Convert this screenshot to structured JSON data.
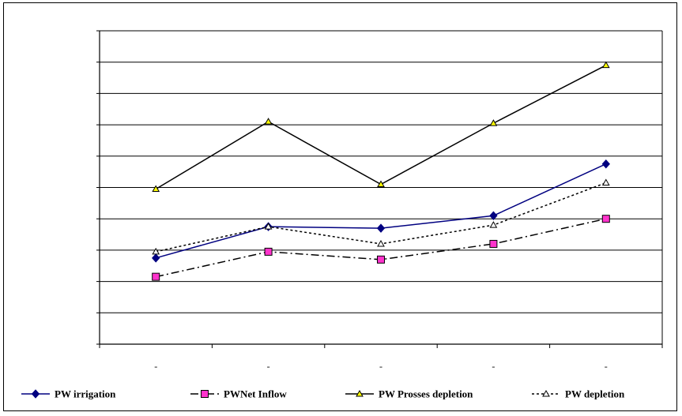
{
  "chart_data": {
    "type": "line",
    "categories": [
      "-",
      "-",
      "-",
      "-",
      "-"
    ],
    "ylim": [
      0,
      10
    ],
    "grid": true,
    "legend_placement": "bottom",
    "series": [
      {
        "name": "PW irrigation",
        "values": [
          2.75,
          3.75,
          3.7,
          4.1,
          5.75
        ],
        "color": "#000080",
        "line": "solid",
        "marker": "diamond",
        "marker_color": "#000080"
      },
      {
        "name": "PWNet Inflow",
        "values": [
          2.15,
          2.95,
          2.7,
          3.2,
          4.0
        ],
        "color": "#000000",
        "line": "dashdot",
        "marker": "square",
        "marker_color": "#ff33cc"
      },
      {
        "name": "PW Prosses depletion",
        "values": [
          4.95,
          7.1,
          5.1,
          7.05,
          8.9
        ],
        "color": "#000000",
        "line": "solid",
        "marker": "triangle",
        "marker_color": "#ffff00"
      },
      {
        "name": "PW depletion",
        "values": [
          2.95,
          3.75,
          3.2,
          3.8,
          5.15
        ],
        "color": "#000000",
        "line": "dotted",
        "marker": "triangle",
        "marker_color": "#ffffff"
      }
    ]
  }
}
